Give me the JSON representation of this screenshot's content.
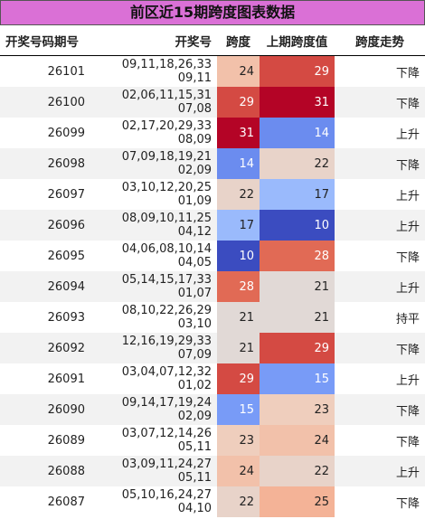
{
  "title": "前区近15期跨度图表数据",
  "table": {
    "columns": [
      "开奖号码期号",
      "开奖号",
      "跨度",
      "上期跨度值",
      "跨度走势"
    ],
    "rows": [
      [
        "26101",
        "09,11,18,26,33 09,11",
        24,
        29,
        "下降"
      ],
      [
        "26100",
        "02,06,11,15,31 07,08",
        29,
        31,
        "下降"
      ],
      [
        "26099",
        "02,17,20,29,33 08,09",
        31,
        14,
        "上升"
      ],
      [
        "26098",
        "07,09,18,19,21 02,09",
        14,
        22,
        "下降"
      ],
      [
        "26097",
        "03,10,12,20,25 01,09",
        22,
        17,
        "上升"
      ],
      [
        "26096",
        "08,09,10,11,25 04,12",
        17,
        10,
        "上升"
      ],
      [
        "26095",
        "04,06,08,10,14 04,05",
        10,
        28,
        "下降"
      ],
      [
        "26094",
        "05,14,15,17,33 01,07",
        28,
        21,
        "上升"
      ],
      [
        "26093",
        "08,10,22,26,29 03,10",
        21,
        21,
        "持平"
      ],
      [
        "26092",
        "12,16,19,29,33 07,09",
        21,
        29,
        "下降"
      ],
      [
        "26091",
        "03,04,07,12,32 01,02",
        29,
        15,
        "上升"
      ],
      [
        "26090",
        "09,14,17,19,24 02,09",
        15,
        23,
        "下降"
      ],
      [
        "26089",
        "03,07,12,14,26 05,11",
        23,
        24,
        "下降"
      ],
      [
        "26088",
        "03,09,11,24,27 05,11",
        24,
        22,
        "上升"
      ],
      [
        "26087",
        "05,10,16,24,27 04,10",
        22,
        25,
        "下降"
      ]
    ]
  }
}
